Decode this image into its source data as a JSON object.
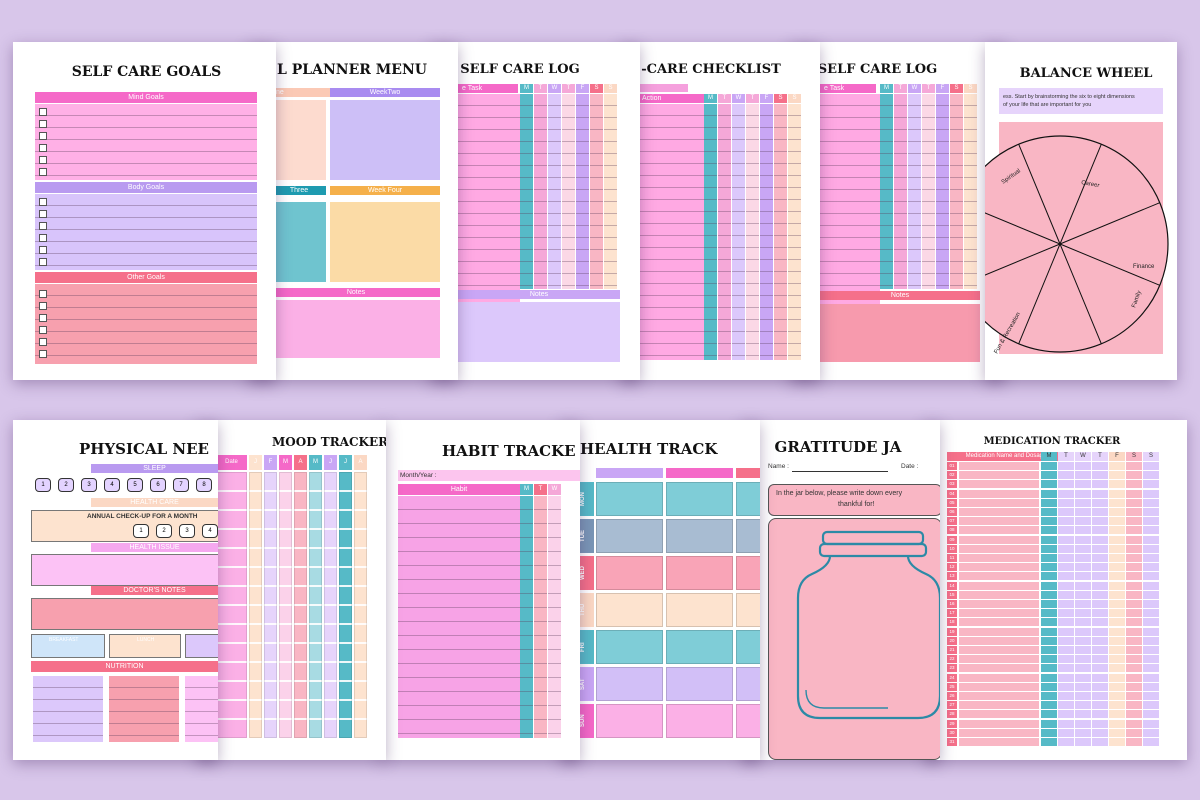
{
  "background_color": "#d8c6ea",
  "colors": {
    "pink": "#f569c8",
    "lavender": "#c9a6f5",
    "coral": "#f5708a",
    "teal": "#56bac7",
    "orange": "#f5b04a",
    "peach": "#fbd8c4"
  },
  "pages": {
    "self_care_goals": {
      "title": "SELF CARE GOALS",
      "sections": [
        "Mind Goals",
        "Body Goals",
        "Other Goals"
      ]
    },
    "planner_menu": {
      "title": "L PLANNER MENU",
      "blocks": [
        "ne",
        "WeekTwo",
        "Three",
        "Week Four",
        "Notes"
      ]
    },
    "self_care_log_1": {
      "title": "SELF CARE LOG",
      "task_header": "e Task",
      "days": [
        "M",
        "T",
        "W",
        "T",
        "F",
        "S",
        "S"
      ],
      "notes": "Notes"
    },
    "checklist": {
      "title": "-CARE CHECKLIST",
      "action_header": "Action",
      "days": [
        "M",
        "T",
        "W",
        "T",
        "F",
        "S",
        "S"
      ]
    },
    "self_care_log_2": {
      "title": "SELF CARE LOG",
      "task_header": "e Task",
      "days": [
        "M",
        "T",
        "W",
        "T",
        "F",
        "S",
        "S"
      ],
      "notes": "Notes"
    },
    "balance_wheel": {
      "title": "BALANCE WHEEL",
      "intro_1": "ess. Start by brainstorming the six to eight dimensions",
      "intro_2": "of your life that  are important for you",
      "segments": [
        "Spiritual",
        "Career",
        "Finance",
        "Family",
        "Health",
        "Fun & Recreation"
      ]
    },
    "physical_needs": {
      "title": "PHYSICAL NEE",
      "sleep": "SLEEP",
      "sleep_numbers": [
        "1",
        "2",
        "3",
        "4",
        "5",
        "6",
        "7",
        "8"
      ],
      "health_care": "HEALTH CARE",
      "checkup": "ANNUAL CHECK-UP FOR A MONTH",
      "checkup_numbers": [
        "1",
        "2",
        "3",
        "4"
      ],
      "health_issue": "HEALTH ISSUE",
      "doctors_notes": "DOCTOR'S NOTES",
      "breakfast": "BREAKFAST",
      "lunch": "LUNCH",
      "nutrition": "NUTRITION"
    },
    "mood_tracker": {
      "title": "MOOD TRACKER",
      "headers": [
        "Date",
        "J",
        "F",
        "M",
        "A",
        "M",
        "J",
        "J",
        "A"
      ]
    },
    "habit_tracker": {
      "title": "HABIT TRACKE",
      "month_label": "Month/Year :",
      "habit_header": "Habit",
      "days": [
        "M",
        "T",
        "W"
      ]
    },
    "health_tracker": {
      "title": "HEALTH TRACK",
      "days": [
        "MON",
        "TUE",
        "WED",
        "THU",
        "FRI",
        "SAT",
        "SUN"
      ]
    },
    "gratitude_jar": {
      "title": "GRATITUDE JA",
      "name_label": "Name :",
      "date_label": "Date :",
      "prompt_1": "In the jar below, please write down every",
      "prompt_2": "thankful for!"
    },
    "medication_tracker": {
      "title": "MEDICATION TRACKER",
      "med_header": "Medication Name and Dosage",
      "days": [
        "M",
        "T",
        "W",
        "T",
        "F",
        "S",
        "S"
      ],
      "row_numbers": [
        "01",
        "02",
        "03",
        "04",
        "05",
        "06",
        "07",
        "08",
        "09",
        "10",
        "11",
        "12",
        "13",
        "14",
        "15",
        "16",
        "17",
        "18",
        "19",
        "20",
        "21",
        "22",
        "23",
        "24",
        "25",
        "26",
        "27",
        "28",
        "29",
        "30",
        "31"
      ]
    }
  }
}
